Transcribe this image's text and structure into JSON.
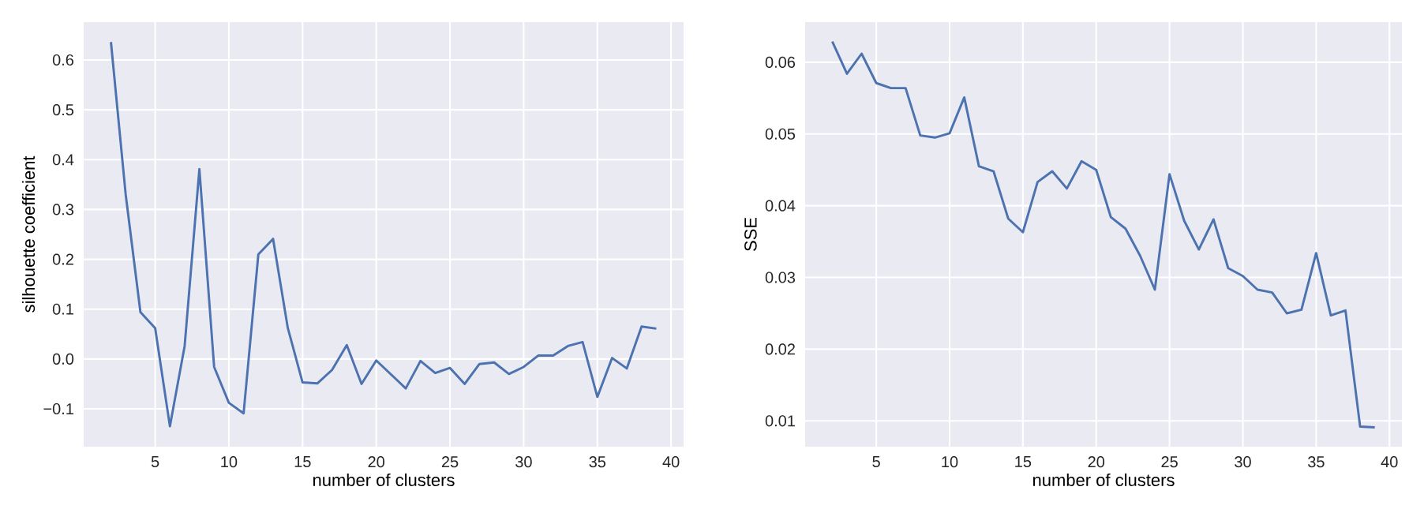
{
  "chart_data": [
    {
      "type": "line",
      "xlabel": "number of clusters",
      "ylabel": "silhouette coefficient",
      "color": "#4c72b0",
      "grid": true,
      "x": [
        2,
        3,
        4,
        5,
        6,
        7,
        8,
        9,
        10,
        11,
        12,
        13,
        14,
        15,
        16,
        17,
        18,
        19,
        20,
        21,
        22,
        23,
        24,
        25,
        26,
        27,
        28,
        29,
        30,
        31,
        32,
        33,
        34,
        35,
        36,
        37,
        38,
        39
      ],
      "values": [
        0.636,
        0.33,
        0.094,
        0.062,
        -0.135,
        0.026,
        0.381,
        -0.016,
        -0.088,
        -0.109,
        0.21,
        0.241,
        0.062,
        -0.047,
        -0.049,
        -0.022,
        0.028,
        -0.05,
        -0.003,
        -0.031,
        -0.059,
        -0.004,
        -0.028,
        -0.018,
        -0.05,
        -0.01,
        -0.007,
        -0.03,
        -0.016,
        0.007,
        0.007,
        0.026,
        0.034,
        -0.076,
        0.002,
        -0.019,
        0.065,
        0.061
      ],
      "xlim": [
        0.15,
        40.85
      ],
      "ylim": [
        -0.176,
        0.676
      ],
      "xticks": [
        5,
        10,
        15,
        20,
        25,
        30,
        35,
        40
      ],
      "yticks": [
        {
          "value": -0.1,
          "label": "−0.1"
        },
        {
          "value": 0,
          "label": "0.0"
        },
        0.1,
        0.2,
        0.3,
        0.4,
        0.5,
        0.6
      ]
    },
    {
      "type": "line",
      "xlabel": "number of clusters",
      "ylabel": "SSE",
      "color": "#4c72b0",
      "grid": true,
      "x": [
        2,
        3,
        4,
        5,
        6,
        7,
        8,
        9,
        10,
        11,
        12,
        13,
        14,
        15,
        16,
        17,
        18,
        19,
        20,
        21,
        22,
        23,
        24,
        25,
        26,
        27,
        28,
        29,
        30,
        31,
        32,
        33,
        34,
        35,
        36,
        37,
        38,
        39
      ],
      "values": [
        0.0629,
        0.0584,
        0.0612,
        0.0571,
        0.0564,
        0.0564,
        0.0498,
        0.0495,
        0.0501,
        0.0551,
        0.0455,
        0.0448,
        0.0382,
        0.0363,
        0.0433,
        0.0448,
        0.0424,
        0.0462,
        0.045,
        0.0384,
        0.0368,
        0.033,
        0.0283,
        0.0444,
        0.0379,
        0.0339,
        0.0381,
        0.0313,
        0.0302,
        0.0283,
        0.0279,
        0.025,
        0.0255,
        0.0334,
        0.0247,
        0.0254,
        0.0092,
        0.0091
      ],
      "xlim": [
        0.15,
        40.85
      ],
      "ylim": [
        0.0064,
        0.0656
      ],
      "xticks": [
        5,
        10,
        15,
        20,
        25,
        30,
        35,
        40
      ],
      "yticks": [
        0.01,
        0.02,
        0.03,
        0.04,
        0.05,
        0.06
      ]
    }
  ]
}
